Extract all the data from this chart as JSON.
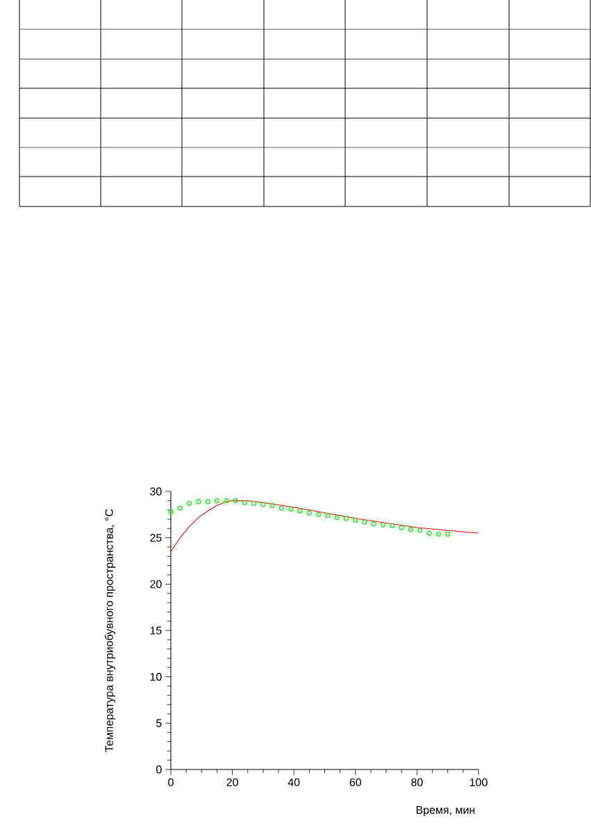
{
  "chart_data": {
    "type": "line",
    "xlabel": "Время, мин",
    "ylabel": "Температура внутриобувного пространства, °C",
    "xlim": [
      0,
      100
    ],
    "ylim": [
      0,
      30
    ],
    "xticks": [
      0,
      20,
      40,
      60,
      80,
      100
    ],
    "yticks": [
      0,
      5,
      10,
      15,
      20,
      25,
      30
    ],
    "series": [
      {
        "color": "#ff0000",
        "line_style": "solid",
        "x": [
          0,
          3,
          6,
          9,
          12,
          15,
          18,
          20,
          25,
          30,
          40,
          50,
          60,
          70,
          80,
          90,
          100
        ],
        "values": [
          23.5,
          25.0,
          26.2,
          27.2,
          27.9,
          28.5,
          28.9,
          29.0,
          29.0,
          28.8,
          28.3,
          27.7,
          27.1,
          26.6,
          26.1,
          25.8,
          25.5
        ]
      },
      {
        "type": "scatter",
        "color": "#00ff00",
        "marker": "circle",
        "x": [
          0,
          3,
          6,
          9,
          12,
          15,
          18,
          21,
          24,
          27,
          30,
          33,
          36,
          39,
          42,
          45,
          48,
          51,
          54,
          57,
          60,
          63,
          66,
          69,
          72,
          75,
          78,
          81,
          84,
          87,
          90
        ],
        "values": [
          27.8,
          28.2,
          28.7,
          28.9,
          28.9,
          29.0,
          29.0,
          29.0,
          28.8,
          28.7,
          28.6,
          28.5,
          28.2,
          28.1,
          27.9,
          27.7,
          27.5,
          27.4,
          27.2,
          27.1,
          26.9,
          26.7,
          26.5,
          26.4,
          26.3,
          26.1,
          25.9,
          25.8,
          25.5,
          25.4,
          25.4
        ]
      }
    ]
  }
}
